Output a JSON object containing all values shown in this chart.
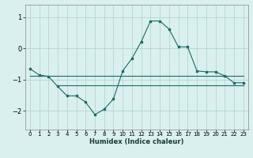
{
  "title": "",
  "xlabel": "Humidex (Indice chaleur)",
  "ylabel": "",
  "background_color": "#d9f0ee",
  "grid_color": "#b0d8d4",
  "line_color": "#1a6b64",
  "xlim": [
    -0.5,
    23.5
  ],
  "ylim": [
    -2.6,
    1.4
  ],
  "yticks": [
    -2,
    -1,
    0,
    1
  ],
  "xticks": [
    0,
    1,
    2,
    3,
    4,
    5,
    6,
    7,
    8,
    9,
    10,
    11,
    12,
    13,
    14,
    15,
    16,
    17,
    18,
    19,
    20,
    21,
    22,
    23
  ],
  "main_line_x": [
    0,
    1,
    2,
    3,
    4,
    5,
    6,
    7,
    8,
    9,
    10,
    11,
    12,
    13,
    14,
    15,
    16,
    17,
    18,
    19,
    20,
    21,
    22,
    23
  ],
  "main_line_y": [
    -0.65,
    -0.85,
    -0.9,
    -1.22,
    -1.52,
    -1.52,
    -1.72,
    -2.12,
    -1.95,
    -1.62,
    -0.72,
    -0.32,
    0.22,
    0.88,
    0.88,
    0.62,
    0.05,
    0.05,
    -0.72,
    -0.75,
    -0.75,
    -0.88,
    -1.1,
    -1.1
  ],
  "flat_line1_x": [
    0,
    23
  ],
  "flat_line1_y": [
    -0.88,
    -0.88
  ],
  "flat_line2_x": [
    3,
    23
  ],
  "flat_line2_y": [
    -1.18,
    -1.18
  ]
}
